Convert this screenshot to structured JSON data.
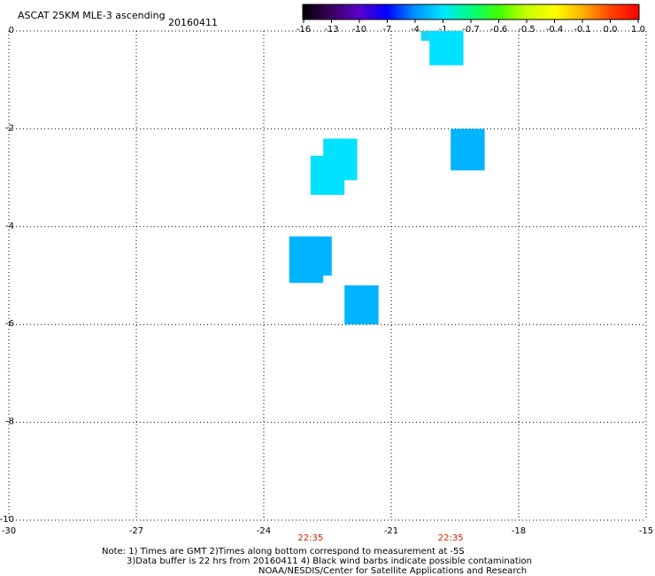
{
  "header": {
    "title": "ASCAT 25KM MLE-3 ascending",
    "date": "20160411"
  },
  "colorbar": {
    "labels": [
      "-16",
      "-13",
      "-10",
      "-7",
      "-4",
      "-1",
      "-0.7",
      "-0.6",
      "-0.5",
      "-0.4",
      "-0.1",
      "0.0",
      "1.0"
    ],
    "colors": [
      "#000000",
      "#3a005c",
      "#5a00c8",
      "#0000ff",
      "#0090ff",
      "#00e6ff",
      "#00ff80",
      "#40ff00",
      "#c8ff00",
      "#ffff00",
      "#ffb000",
      "#ff4000",
      "#ff0000"
    ]
  },
  "notes": {
    "line1": "Note: 1) Times are GMT 2)Times along bottom correspond to measurement at -5S",
    "line2": "3)Data buffer is 22 hrs from 20160411 4) Black wind barbs indicate possible contamination",
    "line3": "NOAA/NESDIS/Center for Satellite Applications and Research"
  },
  "chart_data": {
    "type": "heatmap",
    "title": "ASCAT 25KM MLE-3 ascending",
    "date": "20160411",
    "xlim": [
      -30,
      -15
    ],
    "ylim": [
      -10,
      0
    ],
    "x_ticks": [
      -30,
      -27,
      -24,
      -21,
      -18,
      -15
    ],
    "x_tick_labels": [
      "-30",
      "-27",
      "-24",
      "-21",
      "-18",
      "-15"
    ],
    "y_ticks": [
      0,
      -2,
      -4,
      -6,
      -8,
      -10
    ],
    "y_tick_labels": [
      "0",
      "-2",
      "-4",
      "-6",
      "-8",
      "-10"
    ],
    "grid": true,
    "time_labels": [
      {
        "x": -22.9,
        "text": "22:35"
      },
      {
        "x": -19.6,
        "text": "22:35"
      }
    ],
    "cells": [
      {
        "x0": -20.3,
        "x1": -19.4,
        "y0": 0.0,
        "y1": -0.2,
        "color": "#1ad4f5"
      },
      {
        "x0": -20.1,
        "x1": -19.3,
        "y0": 0.0,
        "y1": -0.7,
        "color": "#00e2ff"
      },
      {
        "x0": -19.6,
        "x1": -18.8,
        "y0": -2.0,
        "y1": -2.85,
        "color": "#00b4ff"
      },
      {
        "x0": -22.6,
        "x1": -21.8,
        "y0": -2.2,
        "y1": -3.05,
        "color": "#00e2ff"
      },
      {
        "x0": -22.9,
        "x1": -22.1,
        "y0": -2.55,
        "y1": -3.35,
        "color": "#00e2ff"
      },
      {
        "x0": -23.4,
        "x1": -22.4,
        "y0": -4.2,
        "y1": -5.0,
        "color": "#00b4ff"
      },
      {
        "x0": -23.4,
        "x1": -22.6,
        "y0": -4.2,
        "y1": -5.15,
        "color": "#00b4ff"
      },
      {
        "x0": -22.1,
        "x1": -21.3,
        "y0": -5.2,
        "y1": -6.0,
        "color": "#00b4ff"
      }
    ]
  }
}
